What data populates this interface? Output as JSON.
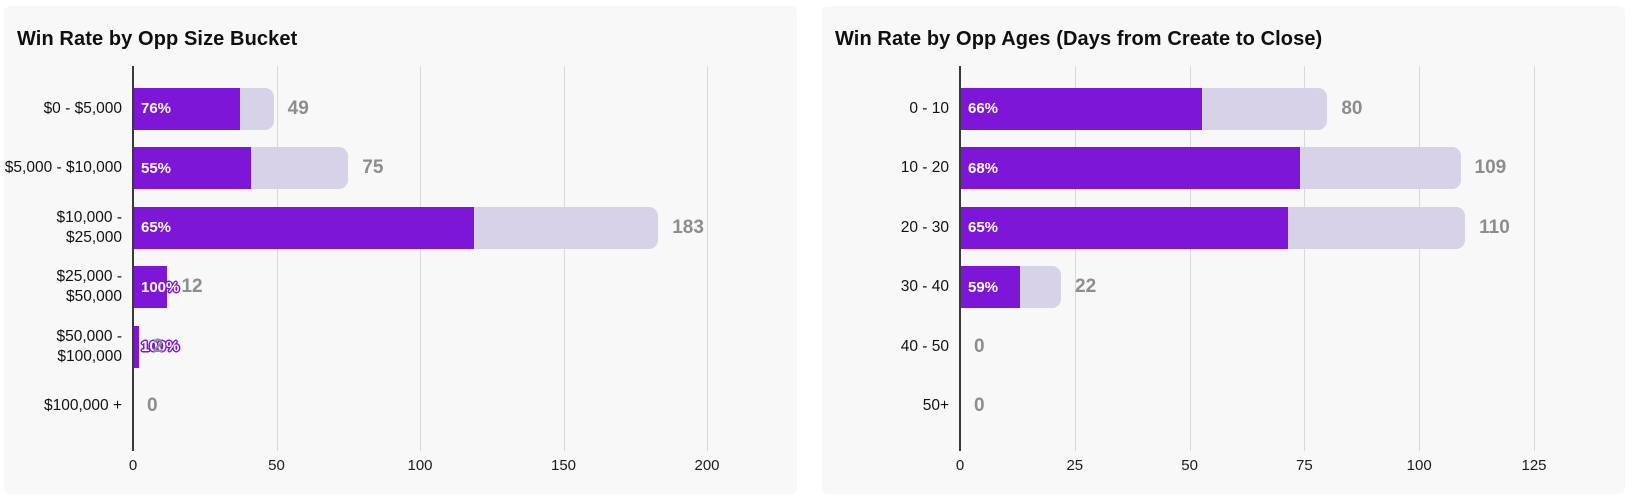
{
  "colors": {
    "won_bar": "#7d16d7",
    "total_bar": "#d7d2e7",
    "panel_bg": "#f8f8f8",
    "gridline": "#d9d9d9",
    "axis_line": "#3a3a3a",
    "total_label": "#8d8d8d",
    "percent_label": "#ffffff",
    "title": "#0f0f0f"
  },
  "chart_data": [
    {
      "type": "bar",
      "orientation": "horizontal",
      "title": "Win Rate by Opp Size Bucket",
      "categories": [
        "$0 - $5,000",
        "$5,000 - $10,000",
        "$10,000 -\n$25,000",
        "$25,000 -\n$50,000",
        "$50,000 -\n$100,000",
        "$100,000 +"
      ],
      "win_rate_pct": [
        76,
        55,
        65,
        100,
        100,
        null
      ],
      "win_rate_labels": [
        "76%",
        "55%",
        "65%",
        "100%",
        "100%",
        ""
      ],
      "totals": [
        49,
        75,
        183,
        12,
        2,
        0
      ],
      "total_labels": [
        "49",
        "75",
        "183",
        "12",
        "2",
        "0"
      ],
      "series": [
        {
          "name": "won",
          "values": [
            37,
            41,
            119,
            12,
            2,
            0
          ]
        },
        {
          "name": "total",
          "values": [
            49,
            75,
            183,
            12,
            2,
            0
          ]
        }
      ],
      "xlim": [
        0,
        215
      ],
      "xticks": [
        0,
        50,
        100,
        150,
        200
      ],
      "grid": true,
      "legend": false
    },
    {
      "type": "bar",
      "orientation": "horizontal",
      "title": "Win Rate by Opp Ages (Days from Create to Close)",
      "categories": [
        "0 - 10",
        "10 - 20",
        "20 - 30",
        "30 - 40",
        "40 - 50",
        "50+"
      ],
      "win_rate_pct": [
        66,
        68,
        65,
        59,
        null,
        null
      ],
      "win_rate_labels": [
        "66%",
        "68%",
        "65%",
        "59%",
        "",
        ""
      ],
      "totals": [
        80,
        109,
        110,
        22,
        0,
        0
      ],
      "total_labels": [
        "80",
        "109",
        "110",
        "22",
        "0",
        "0"
      ],
      "series": [
        {
          "name": "won",
          "values": [
            53,
            74,
            72,
            13,
            0,
            0
          ]
        },
        {
          "name": "total",
          "values": [
            80,
            109,
            110,
            22,
            0,
            0
          ]
        }
      ],
      "xlim": [
        0,
        134
      ],
      "xticks": [
        0,
        25,
        50,
        75,
        100,
        125
      ],
      "grid": true,
      "legend": false
    }
  ]
}
